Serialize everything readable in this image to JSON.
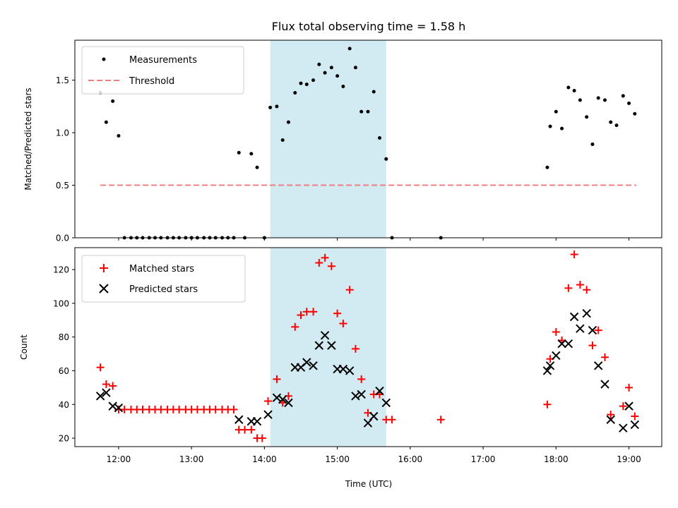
{
  "chart_data": {
    "title": "Flux total observing time = 1.58 h",
    "xlabel": "Time (UTC)",
    "x_unit": "hours UTC",
    "xlim": [
      11.4,
      19.45
    ],
    "x_ticks": [
      12,
      13,
      14,
      15,
      16,
      17,
      18,
      19
    ],
    "x_tick_labels": [
      "12:00",
      "13:00",
      "14:00",
      "15:00",
      "16:00",
      "17:00",
      "18:00",
      "19:00"
    ],
    "highlight_span": [
      14.08,
      15.67
    ],
    "colors": {
      "measurements": "#000000",
      "threshold": "#f08080",
      "matched": "#ff0000",
      "predicted": "#000000",
      "span": "#add8e6"
    },
    "panels": [
      {
        "type": "scatter",
        "ylabel": "Matched/Predicted stars",
        "ylim": [
          0,
          1.88
        ],
        "y_ticks": [
          0.0,
          0.5,
          1.0,
          1.5
        ],
        "y_tick_labels": [
          "0.0",
          "0.5",
          "1.0",
          "1.5"
        ],
        "legend_position": "upper-left",
        "series": [
          {
            "name": "Measurements",
            "marker": "dot",
            "x": [
              11.75,
              11.83,
              11.92,
              12.0,
              12.08,
              12.17,
              12.25,
              12.33,
              12.42,
              12.5,
              12.58,
              12.67,
              12.75,
              12.83,
              12.92,
              13.0,
              13.08,
              13.17,
              13.25,
              13.33,
              13.42,
              13.5,
              13.58,
              13.65,
              13.73,
              13.82,
              13.9,
              14.0,
              14.08,
              14.17,
              14.25,
              14.33,
              14.42,
              14.5,
              14.58,
              14.67,
              14.75,
              14.83,
              14.92,
              15.0,
              15.08,
              15.17,
              15.25,
              15.33,
              15.42,
              15.5,
              15.58,
              15.67,
              15.75,
              16.42,
              17.88,
              17.92,
              18.0,
              18.08,
              18.17,
              18.25,
              18.33,
              18.42,
              18.5,
              18.58,
              18.67,
              18.75,
              18.83,
              18.92,
              19.0,
              19.08
            ],
            "y": [
              1.38,
              1.1,
              1.3,
              0.97,
              0,
              0,
              0,
              0,
              0,
              0,
              0,
              0,
              0,
              0,
              0,
              0,
              0,
              0,
              0,
              0,
              0,
              0,
              0,
              0.81,
              0,
              0.8,
              0.67,
              0,
              1.24,
              1.25,
              0.93,
              1.1,
              1.38,
              1.47,
              1.46,
              1.5,
              1.65,
              1.57,
              1.62,
              1.54,
              1.44,
              1.8,
              1.62,
              1.2,
              1.2,
              1.39,
              0.95,
              0.75,
              0,
              0,
              0.67,
              1.06,
              1.2,
              1.04,
              1.43,
              1.4,
              1.31,
              1.15,
              0.89,
              1.33,
              1.31,
              1.1,
              1.07,
              1.35,
              1.28,
              1.18
            ]
          },
          {
            "name": "Threshold",
            "marker": "dashed-line",
            "x": [
              11.75,
              19.1
            ],
            "y": [
              0.5,
              0.5
            ]
          }
        ]
      },
      {
        "type": "scatter",
        "ylabel": "Count",
        "ylim": [
          15,
          133
        ],
        "y_ticks": [
          20,
          40,
          60,
          80,
          100,
          120
        ],
        "y_tick_labels": [
          "20",
          "40",
          "60",
          "80",
          "100",
          "120"
        ],
        "legend_position": "upper-left",
        "series": [
          {
            "name": "Matched stars",
            "marker": "plus",
            "x": [
              11.75,
              11.83,
              11.92,
              12.0,
              12.08,
              12.17,
              12.25,
              12.33,
              12.42,
              12.5,
              12.58,
              12.67,
              12.75,
              12.83,
              12.92,
              13.0,
              13.08,
              13.17,
              13.25,
              13.33,
              13.42,
              13.5,
              13.58,
              13.65,
              13.73,
              13.82,
              13.9,
              13.97,
              14.05,
              14.17,
              14.25,
              14.33,
              14.42,
              14.5,
              14.58,
              14.67,
              14.75,
              14.83,
              14.92,
              15.0,
              15.08,
              15.17,
              15.25,
              15.33,
              15.42,
              15.5,
              15.58,
              15.67,
              15.75,
              16.42,
              17.88,
              17.92,
              18.0,
              18.08,
              18.17,
              18.25,
              18.33,
              18.42,
              18.5,
              18.58,
              18.67,
              18.75,
              18.92,
              19.0,
              19.08
            ],
            "y": [
              62,
              52,
              51,
              37,
              37,
              37,
              37,
              37,
              37,
              37,
              37,
              37,
              37,
              37,
              37,
              37,
              37,
              37,
              37,
              37,
              37,
              37,
              37,
              25,
              25,
              25,
              20,
              20,
              42,
              55,
              41,
              45,
              86,
              93,
              95,
              95,
              124,
              127,
              122,
              94,
              88,
              108,
              73,
              55,
              35,
              46,
              46,
              31,
              31,
              31,
              40,
              67,
              83,
              78,
              109,
              129,
              111,
              108,
              75,
              84,
              68,
              34,
              39,
              50,
              33
            ]
          },
          {
            "name": "Predicted stars",
            "marker": "x",
            "x": [
              11.75,
              11.83,
              11.92,
              12.0,
              13.65,
              13.82,
              13.9,
              14.05,
              14.17,
              14.25,
              14.33,
              14.42,
              14.5,
              14.58,
              14.67,
              14.75,
              14.83,
              14.92,
              15.0,
              15.08,
              15.17,
              15.25,
              15.33,
              15.42,
              15.5,
              15.58,
              15.67,
              17.88,
              17.92,
              18.0,
              18.08,
              18.17,
              18.25,
              18.33,
              18.42,
              18.5,
              18.58,
              18.67,
              18.75,
              18.92,
              19.0,
              19.08
            ],
            "y": [
              45,
              47,
              39,
              38,
              31,
              30,
              30,
              34,
              44,
              43,
              41,
              62,
              62,
              65,
              63,
              75,
              81,
              75,
              61,
              61,
              60,
              45,
              46,
              29,
              33,
              48,
              41,
              60,
              63,
              69,
              76,
              76,
              92,
              85,
              94,
              84,
              63,
              52,
              31,
              26,
              39,
              28
            ]
          }
        ]
      }
    ]
  }
}
